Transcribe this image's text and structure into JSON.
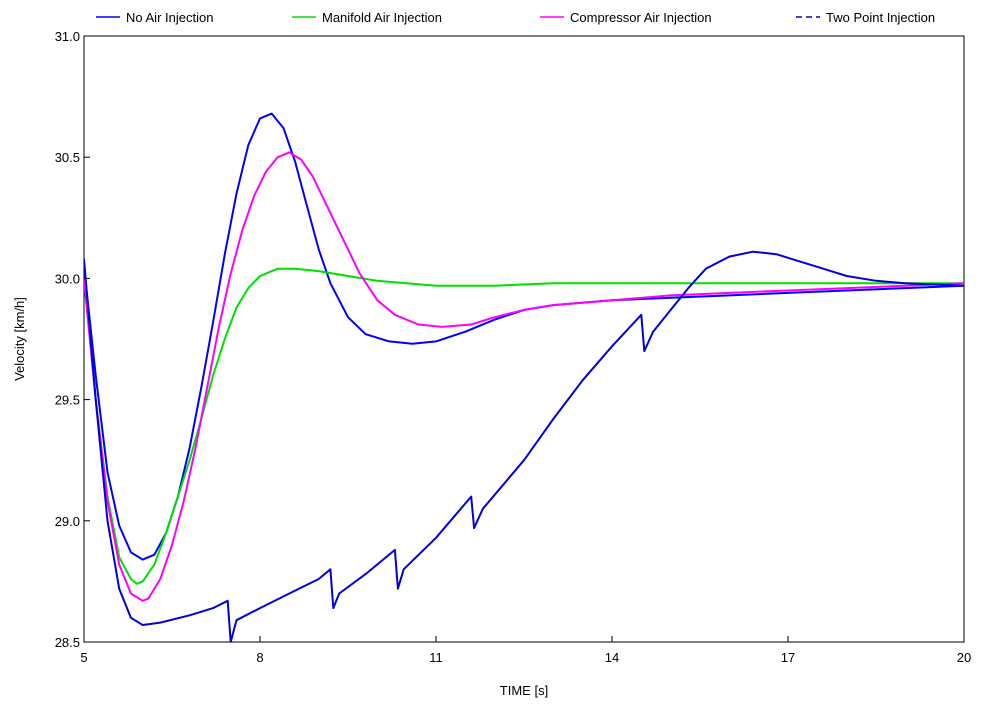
{
  "chart_data": {
    "type": "line",
    "title": "",
    "xlabel": "TIME  [s]",
    "ylabel": "Velocity  [km/h]",
    "xlim": [
      5,
      20
    ],
    "ylim": [
      28.5,
      31.0
    ],
    "x_ticks": [
      5,
      8,
      11,
      14,
      17,
      20
    ],
    "x_tick_labels": [
      "5",
      "8",
      "11",
      "14",
      "17",
      "20"
    ],
    "y_ticks": [
      28.5,
      29.0,
      29.5,
      30.0,
      30.5,
      31.0
    ],
    "y_tick_labels": [
      "28.5",
      "29.0",
      "29.5",
      "30.0",
      "30.5",
      "31.0"
    ],
    "grid": false,
    "legend_position": "top",
    "series": [
      {
        "name": "No Air Injection",
        "color": "#0000ff",
        "dash": "solid",
        "points": [
          [
            5,
            30.05
          ],
          [
            5.2,
            29.6
          ],
          [
            5.4,
            29.2
          ],
          [
            5.6,
            28.98
          ],
          [
            5.8,
            28.87
          ],
          [
            6.0,
            28.84
          ],
          [
            6.2,
            28.86
          ],
          [
            6.4,
            28.95
          ],
          [
            6.6,
            29.1
          ],
          [
            6.8,
            29.3
          ],
          [
            7.0,
            29.55
          ],
          [
            7.2,
            29.82
          ],
          [
            7.4,
            30.1
          ],
          [
            7.6,
            30.35
          ],
          [
            7.8,
            30.55
          ],
          [
            8.0,
            30.66
          ],
          [
            8.2,
            30.68
          ],
          [
            8.4,
            30.62
          ],
          [
            8.6,
            30.48
          ],
          [
            8.8,
            30.3
          ],
          [
            9.0,
            30.12
          ],
          [
            9.2,
            29.98
          ],
          [
            9.5,
            29.84
          ],
          [
            9.8,
            29.77
          ],
          [
            10.2,
            29.74
          ],
          [
            10.6,
            29.73
          ],
          [
            11.0,
            29.74
          ],
          [
            11.5,
            29.78
          ],
          [
            12.0,
            29.83
          ],
          [
            12.5,
            29.87
          ],
          [
            13.0,
            29.89
          ],
          [
            14.0,
            29.91
          ],
          [
            15.0,
            29.92
          ],
          [
            16.0,
            29.93
          ],
          [
            17.0,
            29.94
          ],
          [
            18.0,
            29.95
          ],
          [
            19.0,
            29.96
          ],
          [
            20.0,
            29.97
          ]
        ]
      },
      {
        "name": "Manifold Air Injection",
        "color": "#00e000",
        "dash": "solid",
        "points": [
          [
            5,
            30.0
          ],
          [
            5.2,
            29.5
          ],
          [
            5.4,
            29.1
          ],
          [
            5.6,
            28.85
          ],
          [
            5.8,
            28.76
          ],
          [
            5.9,
            28.74
          ],
          [
            6.0,
            28.75
          ],
          [
            6.2,
            28.82
          ],
          [
            6.4,
            28.95
          ],
          [
            6.6,
            29.1
          ],
          [
            6.8,
            29.25
          ],
          [
            7.0,
            29.42
          ],
          [
            7.2,
            29.6
          ],
          [
            7.4,
            29.75
          ],
          [
            7.6,
            29.88
          ],
          [
            7.8,
            29.96
          ],
          [
            8.0,
            30.01
          ],
          [
            8.3,
            30.04
          ],
          [
            8.6,
            30.04
          ],
          [
            9.0,
            30.03
          ],
          [
            9.5,
            30.01
          ],
          [
            10.0,
            29.99
          ],
          [
            10.5,
            29.98
          ],
          [
            11.0,
            29.97
          ],
          [
            11.5,
            29.97
          ],
          [
            12.0,
            29.97
          ],
          [
            13.0,
            29.98
          ],
          [
            14.0,
            29.98
          ],
          [
            15.0,
            29.98
          ],
          [
            16.0,
            29.98
          ],
          [
            17.0,
            29.98
          ],
          [
            18.0,
            29.98
          ],
          [
            19.0,
            29.98
          ],
          [
            20.0,
            29.98
          ]
        ]
      },
      {
        "name": "Compressor Air Injection",
        "color": "#ff00ff",
        "dash": "solid",
        "points": [
          [
            5,
            30.0
          ],
          [
            5.2,
            29.5
          ],
          [
            5.4,
            29.08
          ],
          [
            5.6,
            28.82
          ],
          [
            5.8,
            28.7
          ],
          [
            6.0,
            28.67
          ],
          [
            6.1,
            28.68
          ],
          [
            6.3,
            28.76
          ],
          [
            6.5,
            28.9
          ],
          [
            6.7,
            29.08
          ],
          [
            6.9,
            29.3
          ],
          [
            7.1,
            29.55
          ],
          [
            7.3,
            29.8
          ],
          [
            7.5,
            30.02
          ],
          [
            7.7,
            30.2
          ],
          [
            7.9,
            30.34
          ],
          [
            8.1,
            30.44
          ],
          [
            8.3,
            30.5
          ],
          [
            8.5,
            30.52
          ],
          [
            8.7,
            30.49
          ],
          [
            8.9,
            30.42
          ],
          [
            9.1,
            30.32
          ],
          [
            9.4,
            30.17
          ],
          [
            9.7,
            30.02
          ],
          [
            10.0,
            29.91
          ],
          [
            10.3,
            29.85
          ],
          [
            10.7,
            29.81
          ],
          [
            11.1,
            29.8
          ],
          [
            11.6,
            29.81
          ],
          [
            12.0,
            29.84
          ],
          [
            12.5,
            29.87
          ],
          [
            13.0,
            29.89
          ],
          [
            14.0,
            29.91
          ],
          [
            15.0,
            29.93
          ],
          [
            16.0,
            29.94
          ],
          [
            17.0,
            29.95
          ],
          [
            18.0,
            29.96
          ],
          [
            19.0,
            29.97
          ],
          [
            20.0,
            29.98
          ]
        ]
      },
      {
        "name": "Two Point Injection",
        "color": "#0000dd",
        "dash": "dashed",
        "points": [
          [
            5,
            30.08
          ],
          [
            5.2,
            29.5
          ],
          [
            5.4,
            29.0
          ],
          [
            5.6,
            28.72
          ],
          [
            5.8,
            28.6
          ],
          [
            6.0,
            28.57
          ],
          [
            6.3,
            28.58
          ],
          [
            6.8,
            28.61
          ],
          [
            7.2,
            28.64
          ],
          [
            7.45,
            28.67
          ],
          [
            7.5,
            28.5
          ],
          [
            7.6,
            28.59
          ],
          [
            8.0,
            28.64
          ],
          [
            8.5,
            28.7
          ],
          [
            9.0,
            28.76
          ],
          [
            9.2,
            28.8
          ],
          [
            9.25,
            28.64
          ],
          [
            9.35,
            28.7
          ],
          [
            9.8,
            28.78
          ],
          [
            10.3,
            28.88
          ],
          [
            10.35,
            28.72
          ],
          [
            10.45,
            28.8
          ],
          [
            11.0,
            28.93
          ],
          [
            11.6,
            29.1
          ],
          [
            11.65,
            28.97
          ],
          [
            11.8,
            29.05
          ],
          [
            12.5,
            29.25
          ],
          [
            13.0,
            29.42
          ],
          [
            13.5,
            29.58
          ],
          [
            14.0,
            29.72
          ],
          [
            14.5,
            29.85
          ],
          [
            14.55,
            29.7
          ],
          [
            14.7,
            29.78
          ],
          [
            15.0,
            29.87
          ],
          [
            15.3,
            29.96
          ],
          [
            15.6,
            30.04
          ],
          [
            16.0,
            30.09
          ],
          [
            16.4,
            30.11
          ],
          [
            16.8,
            30.1
          ],
          [
            17.2,
            30.07
          ],
          [
            17.6,
            30.04
          ],
          [
            18.0,
            30.01
          ],
          [
            18.5,
            29.99
          ],
          [
            19.0,
            29.98
          ],
          [
            20.0,
            29.97
          ]
        ]
      }
    ]
  }
}
